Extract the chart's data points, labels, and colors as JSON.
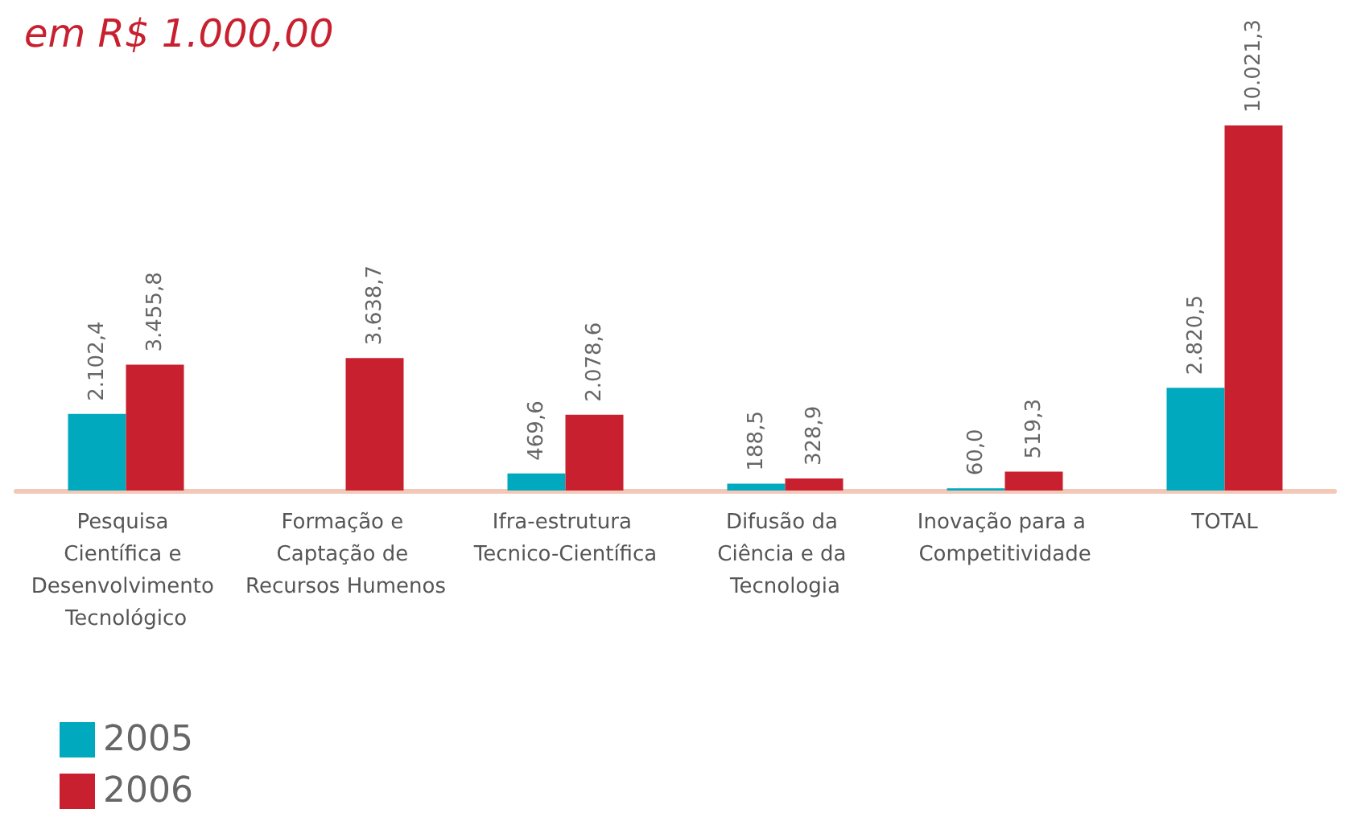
{
  "chart_data": {
    "type": "bar",
    "title": "em R$ 1.000,00",
    "categories": [
      "Pesquisa Científica e Desenvolvimento Tecnológico",
      "Formação e Captação de Recursos Humenos",
      "Ifra-estrutura Tecnico-Científica",
      "Difusão da Ciência e da Tecnologia",
      "Inovação para a Competitividade",
      "TOTAL"
    ],
    "series": [
      {
        "name": "2005",
        "color": "#00a9bd",
        "values": [
          2102.4,
          null,
          469.6,
          188.5,
          60.0,
          2820.5
        ],
        "value_labels": [
          "2.102,4",
          null,
          "469,6",
          "188,5",
          "60,0",
          "2.820,5"
        ]
      },
      {
        "name": "2006",
        "color": "#c8202f",
        "values": [
          3455.8,
          3638.7,
          2078.6,
          328.9,
          519.3,
          10021.3
        ],
        "value_labels": [
          "3.455,8",
          "3.638,7",
          "2.078,6",
          "328,9",
          "519,3",
          "10.021,3"
        ]
      }
    ],
    "legend": "bottom left",
    "grid": false
  }
}
